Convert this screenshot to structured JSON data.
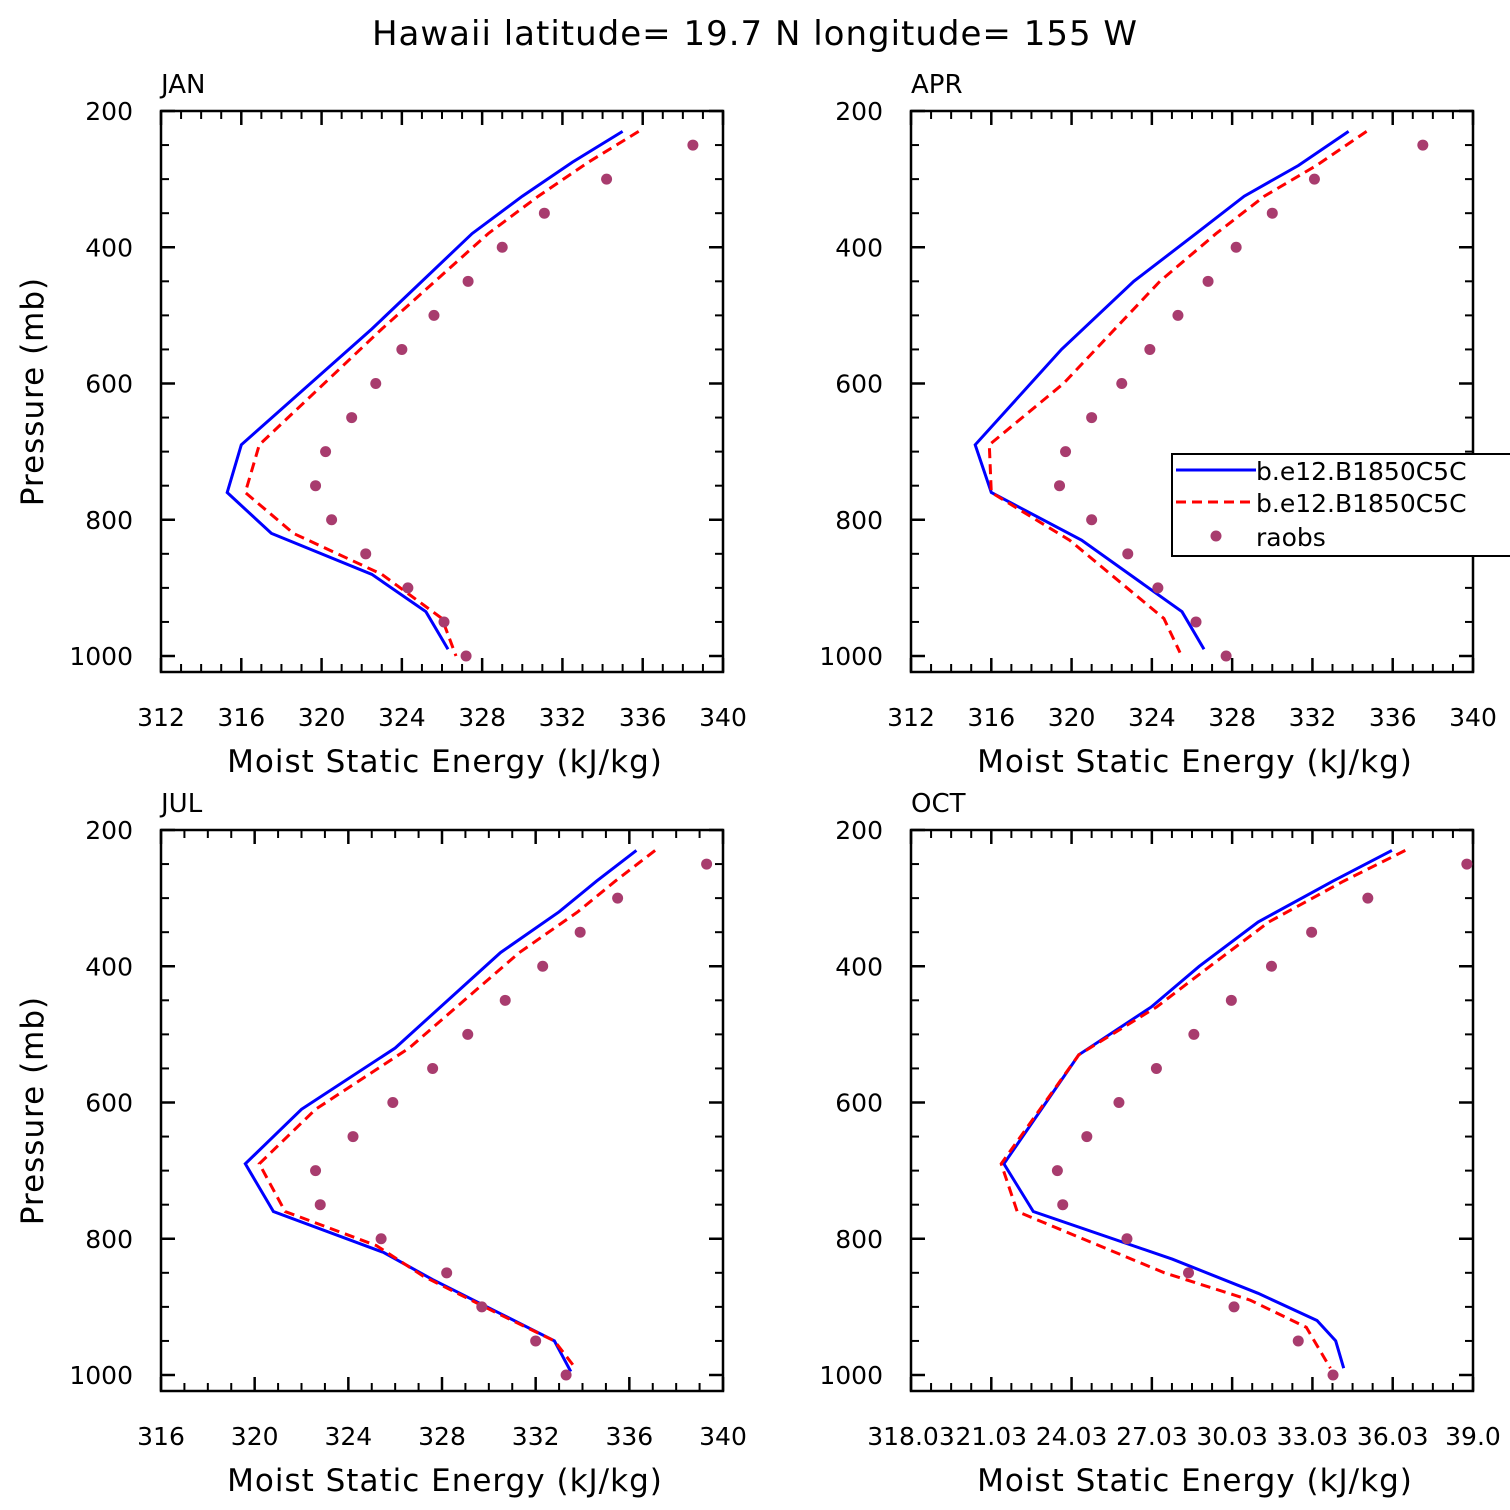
{
  "figure": {
    "title": "Hawaii  latitude= 19.7 N longitude= 155 W"
  },
  "legend": {
    "entries": [
      {
        "label": "b.e12.B1850C5C",
        "style": "solid",
        "color": "#0000ff"
      },
      {
        "label": "b.e12.B1850C5C",
        "style": "dashed",
        "color": "#ff0000"
      },
      {
        "label": "raobs",
        "style": "dot",
        "color": "#a83c6e"
      }
    ],
    "placement": "right side of APR panel"
  },
  "colors": {
    "model1": "#0000ff",
    "model2": "#ff0000",
    "obs": "#a83c6e",
    "axes": "#000000"
  },
  "chart_data": [
    {
      "type": "line",
      "title": "JAN",
      "xlabel": "Moist Static Energy (kJ/kg)",
      "ylabel": "Pressure (mb)",
      "xlim": [
        312,
        340
      ],
      "ylim": [
        1000,
        200
      ],
      "xticks": [
        "312",
        "316",
        "320",
        "324",
        "328",
        "332",
        "336",
        "340"
      ],
      "yticks": [
        "200",
        "400",
        "600",
        "800",
        "1000"
      ],
      "series": [
        {
          "name": "b.e12.B1850C5C",
          "style": "solid",
          "x": [
            335.0,
            332.5,
            330.0,
            327.5,
            322.5,
            316.0,
            315.3,
            317.5,
            322.5,
            325.2,
            326.3
          ],
          "y": [
            230,
            275,
            325,
            380,
            520,
            690,
            760,
            820,
            880,
            935,
            990
          ]
        },
        {
          "name": "b.e12.B1850C5C",
          "style": "dashed",
          "x": [
            335.8,
            333.3,
            330.8,
            328.3,
            323.0,
            316.9,
            316.2,
            318.6,
            323.0,
            326.0,
            326.7
          ],
          "y": [
            230,
            275,
            325,
            380,
            520,
            690,
            760,
            820,
            880,
            945,
            1000
          ]
        },
        {
          "name": "raobs",
          "style": "dot",
          "x": [
            338.5,
            334.2,
            331.1,
            329.0,
            327.3,
            325.6,
            324.0,
            322.7,
            321.5,
            320.2,
            319.7,
            320.5,
            322.2,
            324.3,
            326.1,
            327.2
          ],
          "y": [
            250,
            300,
            350,
            400,
            450,
            500,
            550,
            600,
            650,
            700,
            750,
            800,
            850,
            900,
            950,
            1000
          ]
        }
      ]
    },
    {
      "type": "line",
      "title": "APR",
      "xlabel": "Moist Static Energy (kJ/kg)",
      "ylabel": "",
      "xlim": [
        312,
        340
      ],
      "ylim": [
        1000,
        200
      ],
      "xticks": [
        "312",
        "316",
        "320",
        "324",
        "328",
        "332",
        "336",
        "340"
      ],
      "yticks": [
        "200",
        "400",
        "600",
        "800",
        "1000"
      ],
      "series": [
        {
          "name": "b.e12.B1850C5C",
          "style": "solid",
          "x": [
            333.8,
            331.3,
            328.6,
            326.2,
            323.1,
            319.5,
            315.2,
            316.0,
            320.5,
            325.5,
            326.6
          ],
          "y": [
            230,
            280,
            325,
            380,
            450,
            550,
            690,
            760,
            830,
            935,
            990
          ]
        },
        {
          "name": "b.e12.B1850C5C",
          "style": "dashed",
          "x": [
            334.7,
            332.2,
            329.6,
            327.2,
            324.4,
            319.6,
            315.9,
            316.0,
            319.9,
            324.6,
            325.4
          ],
          "y": [
            230,
            280,
            325,
            380,
            450,
            600,
            690,
            760,
            830,
            945,
            995
          ]
        },
        {
          "name": "raobs",
          "style": "dot",
          "x": [
            337.5,
            332.1,
            330.0,
            328.2,
            326.8,
            325.3,
            323.9,
            322.5,
            321.0,
            319.7,
            319.4,
            321.0,
            322.8,
            324.3,
            326.2,
            327.7
          ],
          "y": [
            250,
            300,
            350,
            400,
            450,
            500,
            550,
            600,
            650,
            700,
            750,
            800,
            850,
            900,
            950,
            1000
          ]
        }
      ]
    },
    {
      "type": "line",
      "title": "JUL",
      "xlabel": "Moist Static Energy (kJ/kg)",
      "ylabel": "Pressure (mb)",
      "xlim": [
        316,
        340
      ],
      "ylim": [
        1000,
        200
      ],
      "xticks": [
        "316",
        "320",
        "324",
        "328",
        "332",
        "336",
        "340"
      ],
      "yticks": [
        "200",
        "400",
        "600",
        "800",
        "1000"
      ],
      "series": [
        {
          "name": "b.e12.B1850C5C",
          "style": "solid",
          "x": [
            336.3,
            334.6,
            333.0,
            330.5,
            326.0,
            322.0,
            319.6,
            320.8,
            325.5,
            327.6,
            330.5,
            332.8,
            333.5
          ],
          "y": [
            230,
            275,
            320,
            380,
            520,
            610,
            690,
            760,
            820,
            860,
            910,
            950,
            995
          ]
        },
        {
          "name": "b.e12.B1850C5C",
          "style": "dashed",
          "x": [
            337.1,
            335.4,
            333.8,
            331.3,
            326.6,
            322.6,
            320.2,
            321.3,
            325.2,
            327.2,
            330.4,
            332.8,
            333.7
          ],
          "y": [
            230,
            275,
            320,
            380,
            520,
            610,
            690,
            760,
            810,
            855,
            910,
            950,
            990
          ]
        },
        {
          "name": "raobs",
          "style": "dot",
          "x": [
            339.3,
            335.5,
            333.9,
            332.3,
            330.7,
            329.1,
            327.6,
            325.9,
            324.2,
            322.6,
            322.8,
            325.4,
            328.2,
            329.7,
            332.0,
            333.3
          ],
          "y": [
            250,
            300,
            350,
            400,
            450,
            500,
            550,
            600,
            650,
            700,
            750,
            800,
            850,
            900,
            950,
            1000
          ]
        }
      ]
    },
    {
      "type": "line",
      "title": "OCT",
      "xlabel": "Moist Static Energy (kJ/kg)",
      "ylabel": "",
      "xlim": [
        318.03,
        339.03
      ],
      "ylim": [
        1000,
        200
      ],
      "xticks": [
        "318.03",
        "21.03",
        "24.03",
        "27.03",
        "30.03",
        "33.03",
        "36.03",
        "39.0"
      ],
      "yticks": [
        "200",
        "400",
        "600",
        "800",
        "1000"
      ],
      "series": [
        {
          "name": "b.e12.B1850C5C",
          "style": "solid",
          "x": [
            336.0,
            333.8,
            331.0,
            328.8,
            327.0,
            324.3,
            321.5,
            322.6,
            327.8,
            331.0,
            333.2,
            333.9,
            334.2
          ],
          "y": [
            230,
            275,
            335,
            400,
            460,
            530,
            690,
            760,
            830,
            880,
            920,
            950,
            990
          ]
        },
        {
          "name": "b.e12.B1850C5C",
          "style": "dashed",
          "x": [
            336.5,
            334.2,
            331.4,
            329.2,
            327.2,
            324.3,
            321.4,
            322.0,
            327.5,
            330.7,
            332.8,
            333.7
          ],
          "y": [
            230,
            275,
            335,
            400,
            460,
            530,
            690,
            760,
            850,
            890,
            930,
            990
          ]
        },
        {
          "name": "raobs",
          "style": "dot",
          "x": [
            338.8,
            335.1,
            333.0,
            331.5,
            330.0,
            328.6,
            327.2,
            325.8,
            324.6,
            323.5,
            323.7,
            326.1,
            328.4,
            330.1,
            332.5,
            333.8
          ],
          "y": [
            250,
            300,
            350,
            400,
            450,
            500,
            550,
            600,
            650,
            700,
            750,
            800,
            850,
            900,
            950,
            1000
          ]
        }
      ]
    }
  ]
}
